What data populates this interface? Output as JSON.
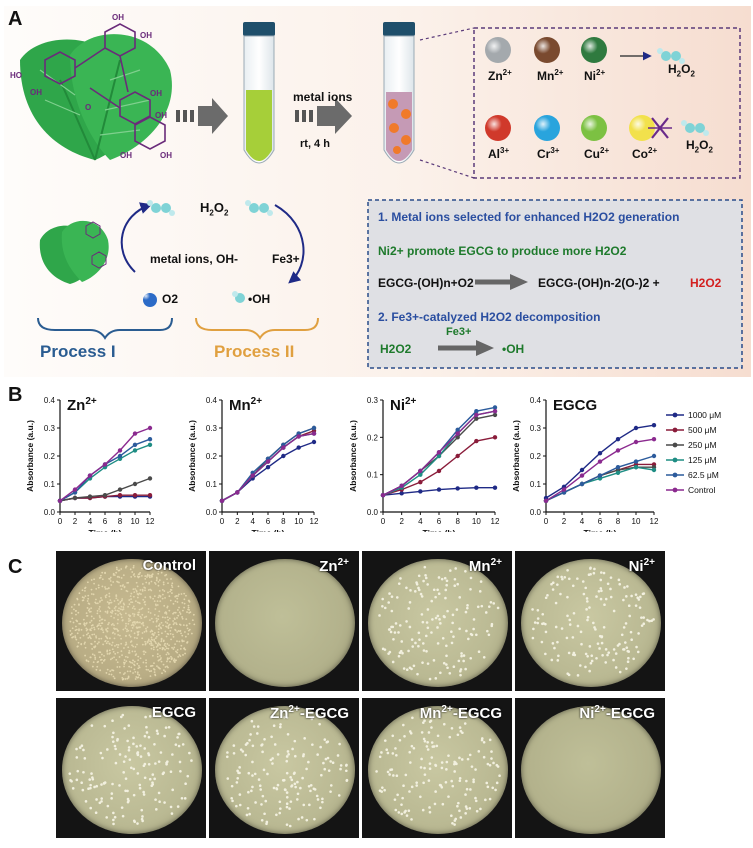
{
  "panels": {
    "a": "A",
    "b": "B",
    "c": "C"
  },
  "panel_a": {
    "arrow_metal_ions": "metal ions",
    "arrow_condition": "rt, 4 h",
    "oh_label": "OH",
    "ions_active": [
      {
        "name": "Zn",
        "charge": "2+",
        "color": "#a4a9ad"
      },
      {
        "name": "Mn",
        "charge": "2+",
        "color": "#7a4a2f"
      },
      {
        "name": "Ni",
        "charge": "2+",
        "color": "#2f7a3f"
      }
    ],
    "ions_inactive": [
      {
        "name": "Al",
        "charge": "3+",
        "color": "#d0392b"
      },
      {
        "name": "Cr",
        "charge": "3+",
        "color": "#29a4dd"
      },
      {
        "name": "Cu",
        "charge": "2+",
        "color": "#7cc142"
      },
      {
        "name": "Co",
        "charge": "2+",
        "color": "#f2e14c"
      }
    ],
    "h2o2": "H2O2",
    "cycle": {
      "h2o2": "H2O2",
      "left_label": "metal ions, OH-",
      "right_label": "Fe3+",
      "o2": "O2",
      "oh_radical": "•OH",
      "process1": "Process I",
      "process2": "Process II"
    },
    "info": {
      "line1": "1. Metal ions selected for enhanced H2O2 generation",
      "line2": "Ni2+ promote EGCG to produce more H2O2",
      "eq_left": "EGCG-(OH)n+O2",
      "eq_right": "EGCG-(OH)n-2(O-)2 +",
      "eq_h2o2": "H2O2",
      "line3": "2. Fe3+-catalyzed H2O2 decomposition",
      "eq2_left": "H2O2",
      "eq2_cat": "Fe3+",
      "eq2_right": "•OH"
    }
  },
  "panel_b": {
    "legend": [
      "1000 μM",
      "500 μM",
      "250 μM",
      "125 μM",
      "62.5 μM",
      "Control"
    ],
    "colors": [
      "#1f2a86",
      "#8a1c3a",
      "#4a4a4a",
      "#1e8d84",
      "#2c5b9c",
      "#8b2a8f"
    ]
  },
  "chart_data": [
    {
      "type": "line",
      "title": "Zn2+",
      "xlabel": "Time (h)",
      "ylabel": "Absorbance (a.u.)",
      "x": [
        0,
        2,
        4,
        6,
        8,
        10,
        12
      ],
      "xlim": [
        0,
        12
      ],
      "ylim": [
        0,
        0.4
      ],
      "yticks": [
        0.0,
        0.1,
        0.2,
        0.3,
        0.4
      ],
      "series": [
        {
          "name": "1000 μM",
          "values": [
            0.04,
            0.05,
            0.05,
            0.055,
            0.055,
            0.055,
            0.055
          ]
        },
        {
          "name": "500 μM",
          "values": [
            0.04,
            0.05,
            0.05,
            0.055,
            0.06,
            0.06,
            0.06
          ]
        },
        {
          "name": "250 μM",
          "values": [
            0.04,
            0.05,
            0.055,
            0.06,
            0.08,
            0.1,
            0.12
          ]
        },
        {
          "name": "125 μM",
          "values": [
            0.04,
            0.07,
            0.12,
            0.16,
            0.19,
            0.22,
            0.24
          ]
        },
        {
          "name": "62.5 μM",
          "values": [
            0.04,
            0.07,
            0.13,
            0.17,
            0.2,
            0.24,
            0.26
          ]
        },
        {
          "name": "Control",
          "values": [
            0.04,
            0.08,
            0.13,
            0.17,
            0.22,
            0.28,
            0.3
          ]
        }
      ]
    },
    {
      "type": "line",
      "title": "Mn2+",
      "xlabel": "Time (h)",
      "ylabel": "Absorbance (a.u.)",
      "x": [
        0,
        2,
        4,
        6,
        8,
        10,
        12
      ],
      "xlim": [
        0,
        12
      ],
      "ylim": [
        0,
        0.4
      ],
      "yticks": [
        0.0,
        0.1,
        0.2,
        0.3,
        0.4
      ],
      "series": [
        {
          "name": "1000 μM",
          "values": [
            0.04,
            0.07,
            0.12,
            0.16,
            0.2,
            0.23,
            0.25
          ]
        },
        {
          "name": "500 μM",
          "values": [
            0.04,
            0.07,
            0.13,
            0.18,
            0.23,
            0.27,
            0.29
          ]
        },
        {
          "name": "250 μM",
          "values": [
            0.04,
            0.07,
            0.13,
            0.19,
            0.24,
            0.28,
            0.3
          ]
        },
        {
          "name": "125 μM",
          "values": [
            0.04,
            0.07,
            0.13,
            0.18,
            0.23,
            0.27,
            0.28
          ]
        },
        {
          "name": "62.5 μM",
          "values": [
            0.04,
            0.07,
            0.14,
            0.19,
            0.24,
            0.28,
            0.3
          ]
        },
        {
          "name": "Control",
          "values": [
            0.04,
            0.07,
            0.13,
            0.18,
            0.23,
            0.27,
            0.28
          ]
        }
      ]
    },
    {
      "type": "line",
      "title": "Ni2+",
      "xlabel": "Time (h)",
      "ylabel": "Absorbance (a.u.)",
      "x": [
        0,
        2,
        4,
        6,
        8,
        10,
        12
      ],
      "xlim": [
        0,
        12
      ],
      "ylim": [
        0,
        0.3
      ],
      "yticks": [
        0.0,
        0.1,
        0.2,
        0.3
      ],
      "series": [
        {
          "name": "1000 μM",
          "values": [
            0.045,
            0.05,
            0.055,
            0.06,
            0.063,
            0.065,
            0.065
          ]
        },
        {
          "name": "500 μM",
          "values": [
            0.045,
            0.06,
            0.08,
            0.11,
            0.15,
            0.19,
            0.2
          ]
        },
        {
          "name": "250 μM",
          "values": [
            0.045,
            0.07,
            0.11,
            0.15,
            0.2,
            0.25,
            0.26
          ]
        },
        {
          "name": "125 μM",
          "values": [
            0.045,
            0.065,
            0.1,
            0.15,
            0.21,
            0.26,
            0.27
          ]
        },
        {
          "name": "62.5 μM",
          "values": [
            0.045,
            0.07,
            0.11,
            0.16,
            0.22,
            0.27,
            0.28
          ]
        },
        {
          "name": "Control",
          "values": [
            0.045,
            0.07,
            0.11,
            0.16,
            0.21,
            0.26,
            0.27
          ]
        }
      ]
    },
    {
      "type": "line",
      "title": "EGCG",
      "xlabel": "Time (h)",
      "ylabel": "Absorbance (a.u.)",
      "x": [
        0,
        2,
        4,
        6,
        8,
        10,
        12
      ],
      "xlim": [
        0,
        12
      ],
      "ylim": [
        0,
        0.4
      ],
      "yticks": [
        0.0,
        0.1,
        0.2,
        0.3,
        0.4
      ],
      "series": [
        {
          "name": "1000 μM",
          "values": [
            0.05,
            0.09,
            0.15,
            0.21,
            0.26,
            0.3,
            0.31
          ]
        },
        {
          "name": "500 μM",
          "values": [
            0.04,
            0.07,
            0.1,
            0.13,
            0.15,
            0.17,
            0.17
          ]
        },
        {
          "name": "250 μM",
          "values": [
            0.04,
            0.07,
            0.1,
            0.13,
            0.15,
            0.16,
            0.16
          ]
        },
        {
          "name": "125 μM",
          "values": [
            0.04,
            0.07,
            0.1,
            0.12,
            0.14,
            0.16,
            0.15
          ]
        },
        {
          "name": "62.5 μM",
          "values": [
            0.04,
            0.07,
            0.1,
            0.13,
            0.16,
            0.18,
            0.2
          ]
        },
        {
          "name": "Control",
          "values": [
            0.04,
            0.08,
            0.13,
            0.18,
            0.22,
            0.25,
            0.26
          ]
        }
      ]
    }
  ],
  "panel_c": {
    "plates": [
      {
        "label": "Control",
        "sup": "",
        "density": "lawn"
      },
      {
        "label": "Zn",
        "sup": "2+",
        "density": "none"
      },
      {
        "label": "Mn",
        "sup": "2+",
        "density": "medium"
      },
      {
        "label": "Ni",
        "sup": "2+",
        "density": "medium"
      },
      {
        "label": "EGCG",
        "sup": "",
        "density": "medium"
      },
      {
        "label": "Zn",
        "sup": "2+",
        "suffix": "-EGCG",
        "density": "medium"
      },
      {
        "label": "Mn",
        "sup": "2+",
        "suffix": "-EGCG",
        "density": "medium"
      },
      {
        "label": "Ni",
        "sup": "2+",
        "suffix": "-EGCG",
        "density": "none"
      }
    ]
  }
}
